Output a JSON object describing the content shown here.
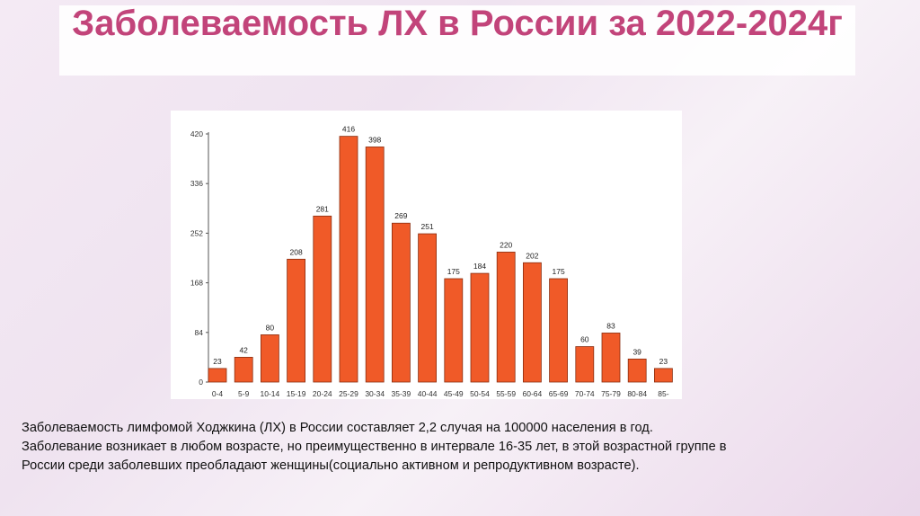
{
  "title": "Заболеваемость ЛХ в России за 2022-2024г",
  "description": [
    "Заболеваемость лимфомой Ходжкина (ЛХ) в России составляет 2,2 случая на 100000 населения в год.",
    "Заболевание возникает в любом возрасте, но преимущественно в интервале 16-35 лет, в этой возрастной группе в",
    "России среди заболевших преобладают женщины(социально активном и репродуктивном возрасте)."
  ],
  "chart_data": {
    "type": "bar",
    "categories": [
      "0-4",
      "5-9",
      "10-14",
      "15-19",
      "20-24",
      "25-29",
      "30-34",
      "35-39",
      "40-44",
      "45-49",
      "50-54",
      "55-59",
      "60-64",
      "65-69",
      "70-74",
      "75-79",
      "80-84",
      "85-"
    ],
    "values": [
      23,
      42,
      80,
      208,
      281,
      416,
      398,
      269,
      251,
      175,
      184,
      220,
      202,
      175,
      60,
      83,
      39,
      23
    ],
    "yticks": [
      0,
      84,
      168,
      252,
      336,
      420
    ],
    "ylim": [
      0,
      420
    ],
    "bar_color": "#f05a28",
    "bar_stroke": "#8a2e10",
    "grid": false,
    "legend": "none"
  }
}
